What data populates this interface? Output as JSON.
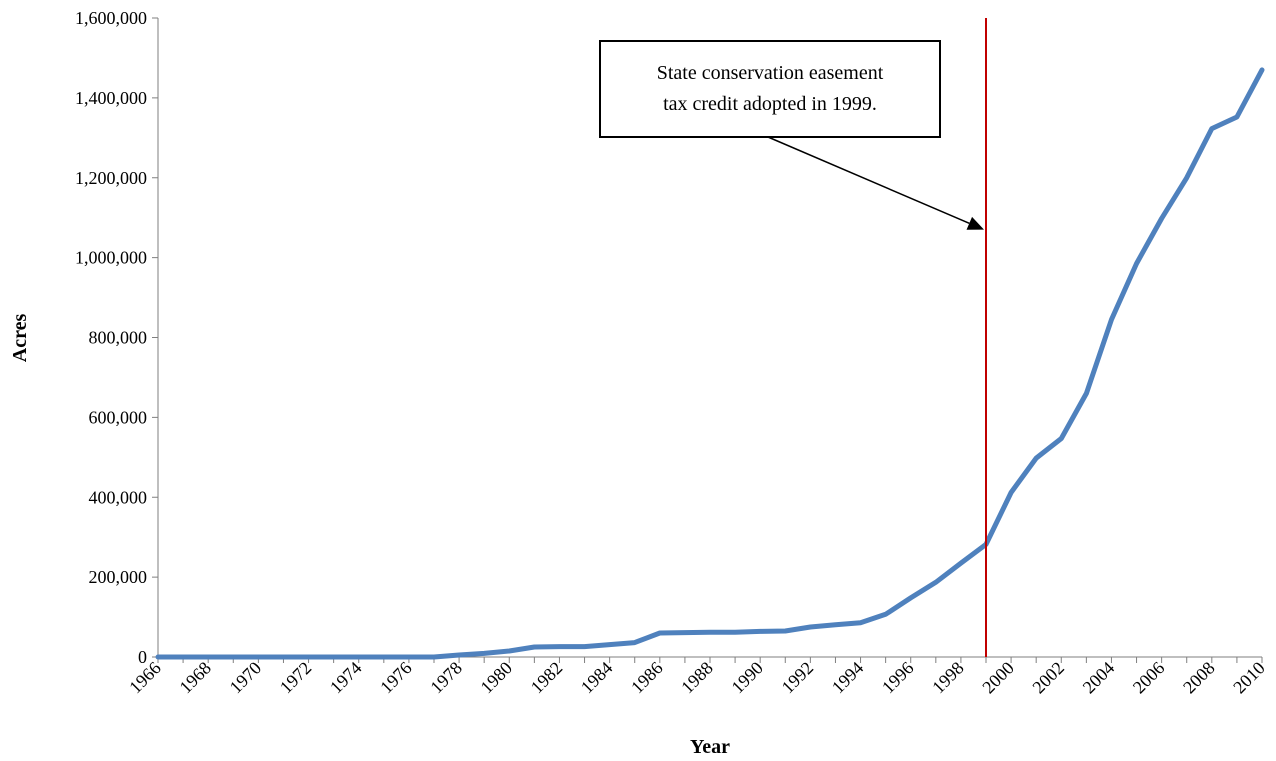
{
  "chart_data": {
    "type": "line",
    "title": "",
    "xlabel": "Year",
    "ylabel": "Acres",
    "xlim": [
      1966,
      2010
    ],
    "ylim": [
      0,
      1600000
    ],
    "y_ticks": [
      0,
      200000,
      400000,
      600000,
      800000,
      1000000,
      1200000,
      1400000,
      1600000
    ],
    "y_tick_labels": [
      "0",
      "200,000",
      "400,000",
      "600,000",
      "800,000",
      "1,000,000",
      "1,200,000",
      "1,400,000",
      "1,600,000"
    ],
    "x_tick_labels": [
      "1966",
      "1968",
      "1970",
      "1972",
      "1974",
      "1976",
      "1978",
      "1980",
      "1982",
      "1984",
      "1986",
      "1988",
      "1990",
      "1992",
      "1994",
      "1996",
      "1998",
      "2000",
      "2002",
      "2004",
      "2006",
      "2008",
      "2010"
    ],
    "grid": false,
    "legend": "none",
    "series": [
      {
        "color": "#4f81bd",
        "x": [
          1966,
          1967,
          1968,
          1969,
          1970,
          1971,
          1972,
          1973,
          1974,
          1975,
          1976,
          1977,
          1978,
          1979,
          1980,
          1981,
          1982,
          1983,
          1984,
          1985,
          1986,
          1987,
          1988,
          1989,
          1990,
          1991,
          1992,
          1993,
          1994,
          1995,
          1996,
          1997,
          1998,
          1999,
          2000,
          2001,
          2002,
          2003,
          2004,
          2005,
          2006,
          2007,
          2008,
          2009,
          2010
        ],
        "y": [
          0,
          0,
          0,
          0,
          0,
          0,
          0,
          0,
          0,
          0,
          0,
          0,
          5000,
          9000,
          15000,
          25000,
          26000,
          26000,
          31000,
          36000,
          60000,
          61000,
          62000,
          62000,
          64000,
          65000,
          75000,
          81000,
          86000,
          107000,
          148000,
          187000,
          235000,
          282000,
          412000,
          498000,
          547000,
          660000,
          845000,
          985000,
          1098000,
          1200000,
          1323000,
          1352000,
          1470000
        ]
      }
    ],
    "reference_line": {
      "x": 1999,
      "color": "#c00000"
    },
    "annotation": {
      "lines": [
        "State conservation easement",
        "tax credit adopted in 1999."
      ],
      "arrow_target": {
        "x": 1999,
        "y": 1070000
      }
    }
  }
}
